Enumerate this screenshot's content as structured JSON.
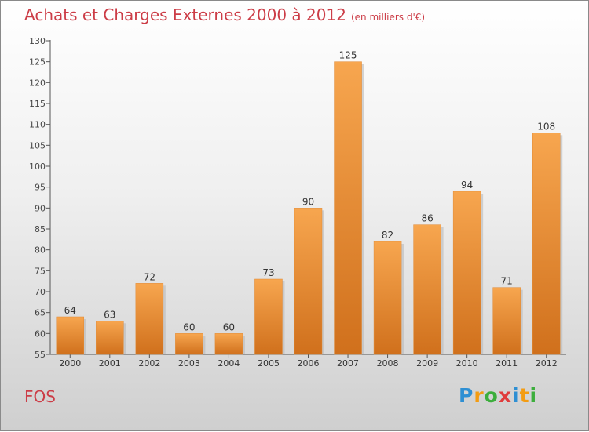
{
  "header": {
    "title": "Achats et Charges Externes 2000 à 2012",
    "subtitle": "(en milliers d'€)"
  },
  "footer": {
    "place": "FOS",
    "brand_letters": [
      "P",
      "r",
      "o",
      "x",
      "i",
      "t",
      "i"
    ],
    "brand_colors": [
      "#2e8fd3",
      "#f39c12",
      "#3cae3c",
      "#e03c3c",
      "#2e8fd3",
      "#f39c12",
      "#3cae3c"
    ]
  },
  "colors": {
    "bar_light": "#f7a64f",
    "bar_dark": "#d0701c",
    "title": "#cc3d47"
  },
  "chart_data": {
    "type": "bar",
    "title": "Achats et Charges Externes 2000 à 2012",
    "categories": [
      "2000",
      "2001",
      "2002",
      "2003",
      "2004",
      "2005",
      "2006",
      "2007",
      "2008",
      "2009",
      "2010",
      "2011",
      "2012"
    ],
    "values": [
      64,
      63,
      72,
      60,
      60,
      73,
      90,
      125,
      82,
      86,
      94,
      71,
      108
    ],
    "ylim": [
      55,
      130
    ],
    "yticks": [
      55,
      60,
      65,
      70,
      75,
      80,
      85,
      90,
      95,
      100,
      105,
      110,
      115,
      120,
      125,
      130
    ],
    "grid": false,
    "data_labels": true
  }
}
